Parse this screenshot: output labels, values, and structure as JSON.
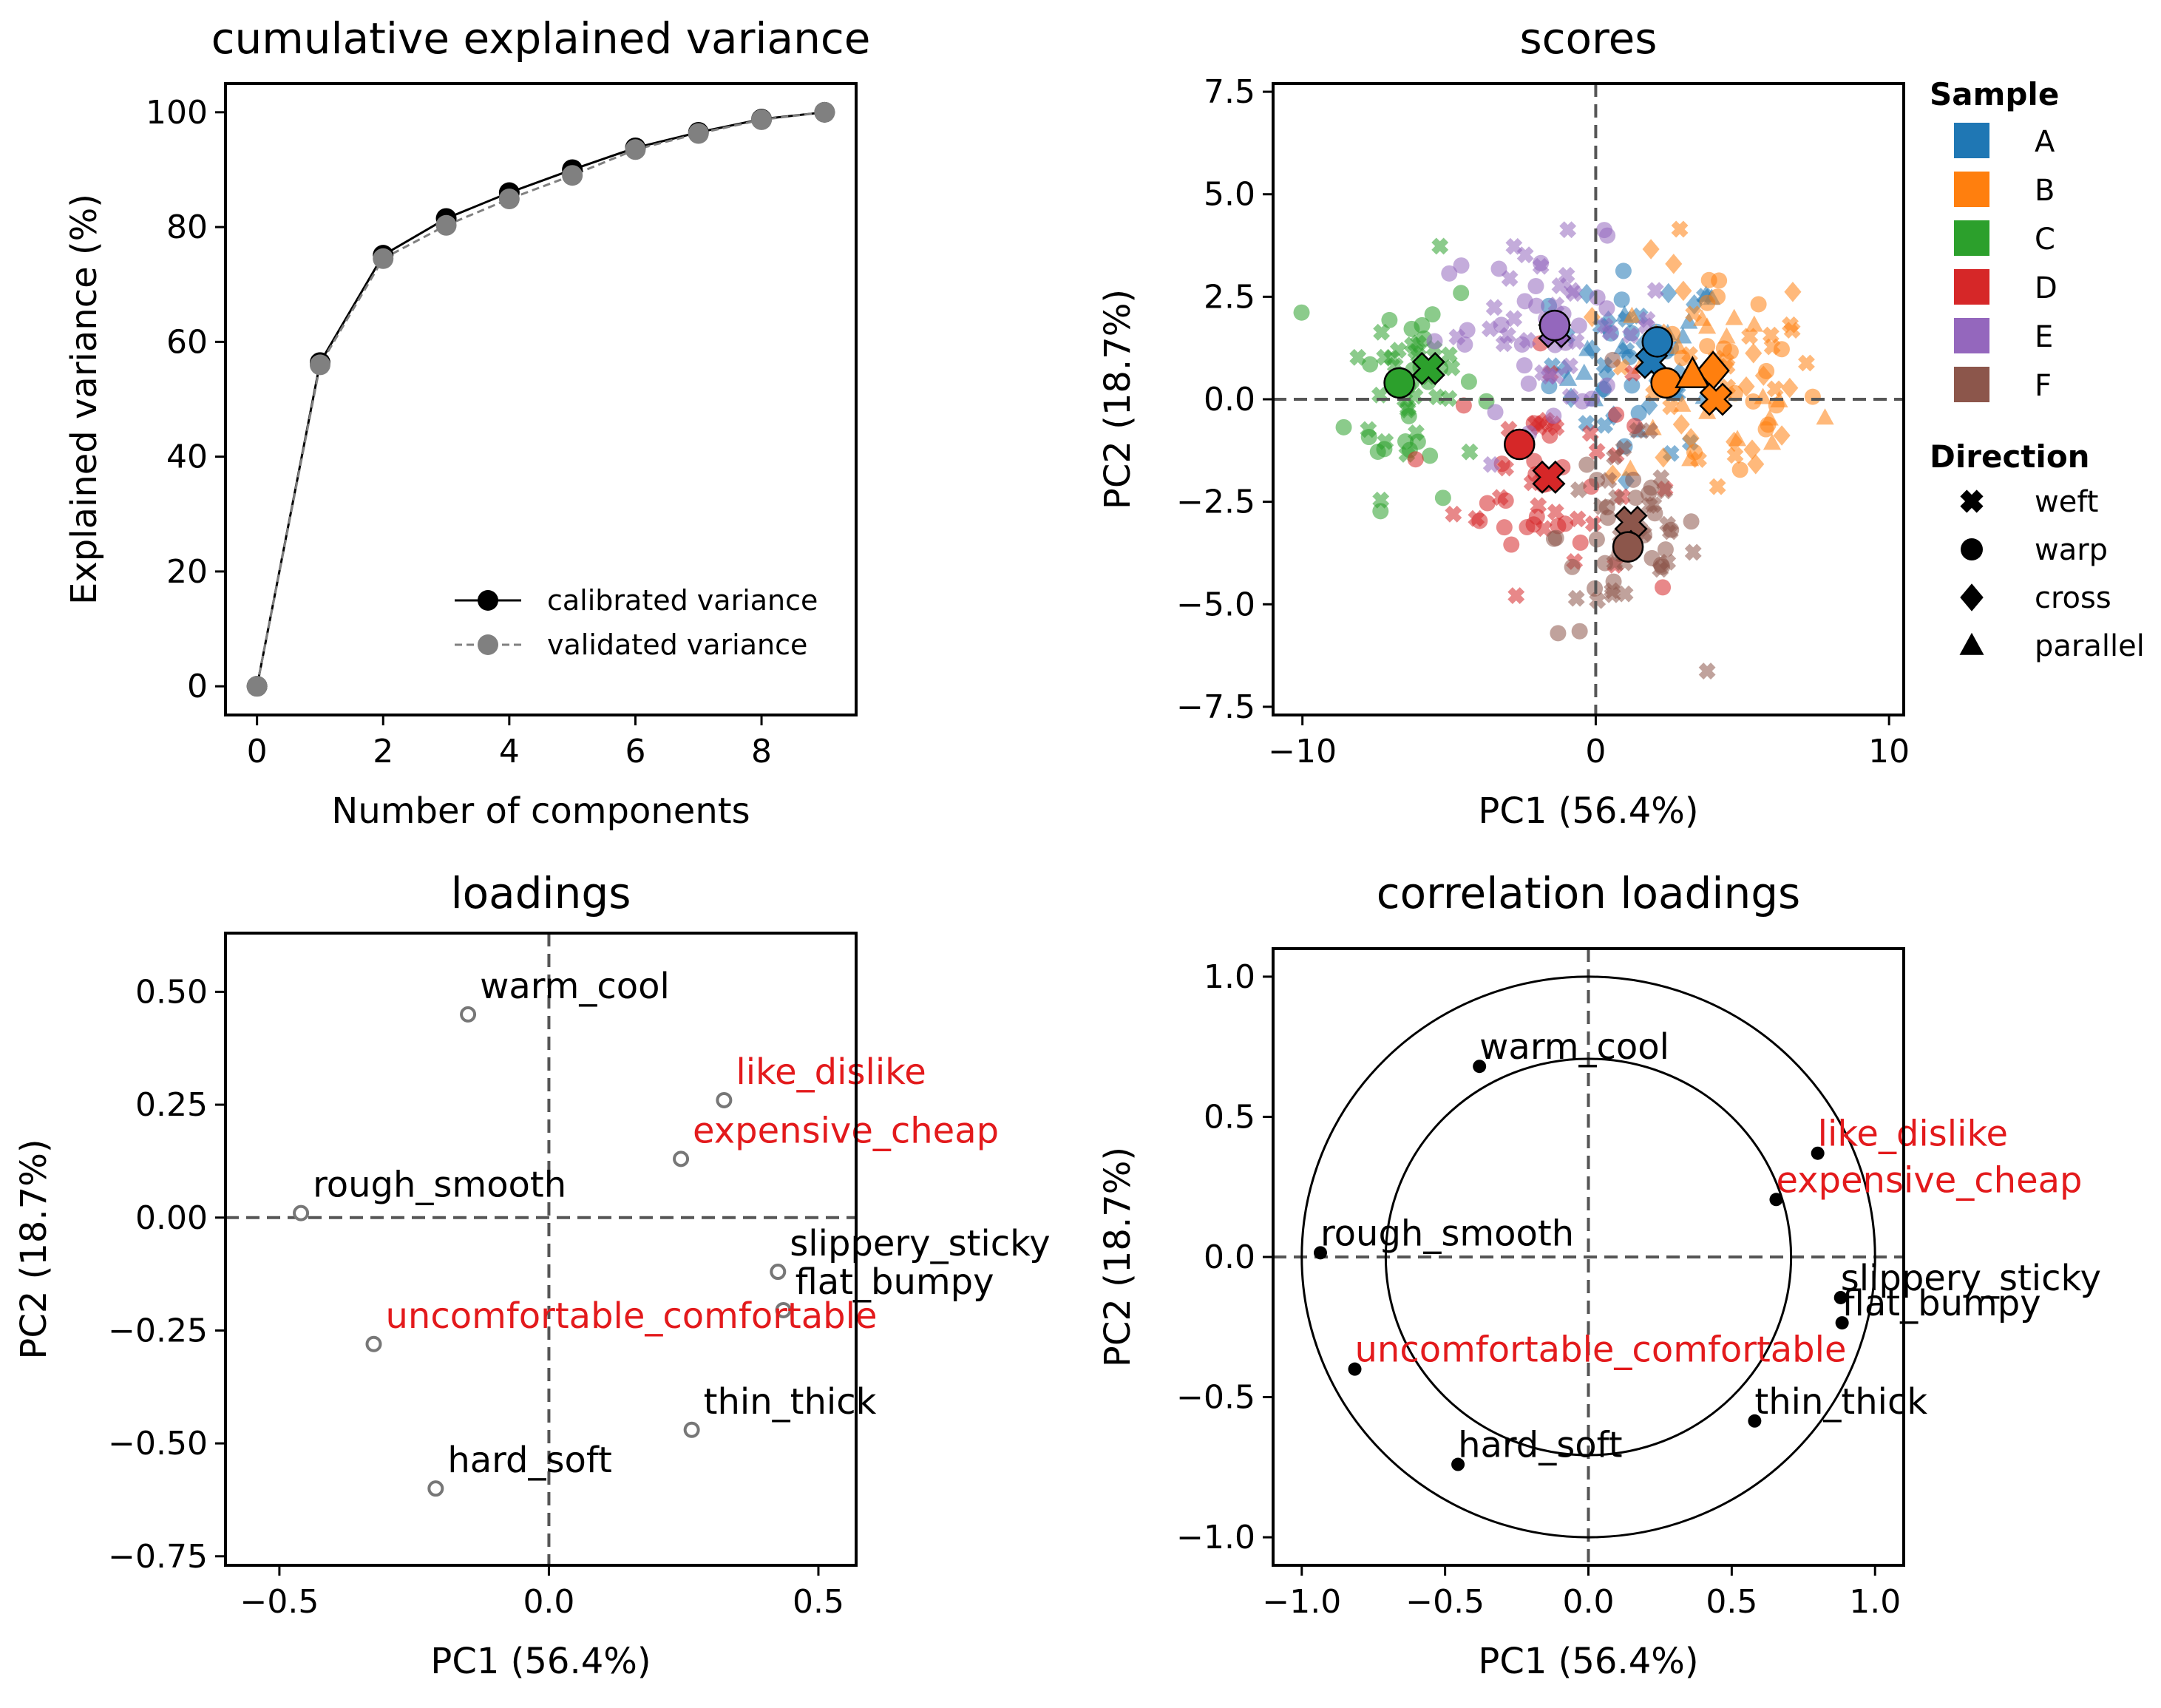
{
  "chart_data": [
    {
      "type": "line",
      "title": "cumulative explained variance",
      "xlabel": "Number of components",
      "ylabel": "Explained variance (%)",
      "xlim": [
        -0.5,
        9.5
      ],
      "ylim": [
        -5,
        105
      ],
      "xticks": [
        0,
        2,
        4,
        6,
        8
      ],
      "yticks": [
        0,
        20,
        40,
        60,
        80,
        100
      ],
      "legend_position": "lower-right",
      "series": [
        {
          "name": "calibrated variance",
          "color": "#000000",
          "x": [
            0,
            1,
            2,
            3,
            4,
            5,
            6,
            7,
            8,
            9
          ],
          "values": [
            0,
            56.4,
            75.1,
            81.5,
            86.0,
            90.0,
            93.8,
            96.5,
            98.8,
            100
          ]
        },
        {
          "name": "validated variance",
          "color": "#808080",
          "x": [
            0,
            1,
            2,
            3,
            4,
            5,
            6,
            7,
            8,
            9
          ],
          "values": [
            0,
            56.0,
            74.5,
            80.3,
            84.9,
            89.0,
            93.5,
            96.3,
            98.7,
            100
          ]
        }
      ]
    },
    {
      "type": "scatter",
      "title": "scores",
      "xlabel": "PC1 (56.4%)",
      "ylabel": "PC2 (18.7%)",
      "xlim": [
        -11,
        10.5
      ],
      "ylim": [
        -7.7,
        7.7
      ],
      "xticks": [
        -10,
        0,
        10
      ],
      "yticks": [
        -7.5,
        -5.0,
        -2.5,
        0.0,
        2.5,
        5.0,
        7.5
      ],
      "legend_position": "right-outside",
      "legend": {
        "sample_title": "Sample",
        "samples": [
          {
            "label": "A",
            "color": "#1f77b4"
          },
          {
            "label": "B",
            "color": "#ff7f0e"
          },
          {
            "label": "C",
            "color": "#2ca02c"
          },
          {
            "label": "D",
            "color": "#d62728"
          },
          {
            "label": "E",
            "color": "#9467bd"
          },
          {
            "label": "F",
            "color": "#8c564b"
          }
        ],
        "direction_title": "Direction",
        "directions": [
          {
            "label": "weft",
            "marker": "x"
          },
          {
            "label": "warp",
            "marker": "o"
          },
          {
            "label": "cross",
            "marker": "d"
          },
          {
            "label": "parallel",
            "marker": "t"
          }
        ]
      },
      "clouds": [
        {
          "sample": "A",
          "cx": 1.5,
          "cy": 0.9,
          "sx": 1.5,
          "sy": 1.1,
          "n": 60
        },
        {
          "sample": "B",
          "cx": 4.0,
          "cy": 0.4,
          "sx": 1.8,
          "sy": 1.5,
          "n": 80
        },
        {
          "sample": "C",
          "cx": -6.2,
          "cy": 0.5,
          "sx": 1.1,
          "sy": 1.4,
          "n": 55
        },
        {
          "sample": "D",
          "cx": -1.8,
          "cy": -1.8,
          "sx": 1.5,
          "sy": 1.4,
          "n": 55
        },
        {
          "sample": "E",
          "cx": -1.5,
          "cy": 1.8,
          "sx": 2.0,
          "sy": 1.0,
          "n": 60
        },
        {
          "sample": "F",
          "cx": 1.1,
          "cy": -3.3,
          "sx": 1.2,
          "sy": 1.3,
          "n": 60
        }
      ],
      "centroids": [
        {
          "sample": "A",
          "marker": "x",
          "x": 1.9,
          "y": 0.9
        },
        {
          "sample": "A",
          "marker": "o",
          "x": 2.1,
          "y": 1.4
        },
        {
          "sample": "B",
          "marker": "o",
          "x": 2.4,
          "y": 0.4
        },
        {
          "sample": "B",
          "marker": "d",
          "x": 4.0,
          "y": 0.7
        },
        {
          "sample": "B",
          "marker": "t",
          "x": 3.3,
          "y": 0.6
        },
        {
          "sample": "B",
          "marker": "x",
          "x": 4.1,
          "y": 0.0
        },
        {
          "sample": "C",
          "marker": "o",
          "x": -6.7,
          "y": 0.4
        },
        {
          "sample": "C",
          "marker": "x",
          "x": -5.7,
          "y": 0.75
        },
        {
          "sample": "D",
          "marker": "o",
          "x": -2.6,
          "y": -1.1
        },
        {
          "sample": "D",
          "marker": "x",
          "x": -1.6,
          "y": -1.9
        },
        {
          "sample": "E",
          "marker": "x",
          "x": -1.4,
          "y": 1.65
        },
        {
          "sample": "E",
          "marker": "o",
          "x": -1.4,
          "y": 1.8
        },
        {
          "sample": "F",
          "marker": "x",
          "x": 1.2,
          "y": -3.0
        },
        {
          "sample": "F",
          "marker": "o",
          "x": 1.1,
          "y": -3.6
        }
      ]
    },
    {
      "type": "scatter",
      "title": "loadings",
      "xlabel": "PC1 (56.4%)",
      "ylabel": "PC2 (18.7%)",
      "xlim": [
        -0.6,
        0.57
      ],
      "ylim": [
        -0.77,
        0.63
      ],
      "xticks": [
        -0.5,
        0.0,
        0.5
      ],
      "yticks": [
        -0.75,
        -0.5,
        -0.25,
        0.0,
        0.25,
        0.5
      ],
      "points": [
        {
          "label": "warm_cool",
          "x": -0.15,
          "y": 0.45,
          "color": "#000000"
        },
        {
          "label": "like_dislike",
          "x": 0.325,
          "y": 0.26,
          "color": "#e31a1c"
        },
        {
          "label": "expensive_cheap",
          "x": 0.245,
          "y": 0.13,
          "color": "#e31a1c"
        },
        {
          "label": "rough_smooth",
          "x": -0.46,
          "y": 0.01,
          "color": "#000000"
        },
        {
          "label": "slippery_sticky",
          "x": 0.425,
          "y": -0.12,
          "color": "#000000"
        },
        {
          "label": "flat_bumpy",
          "x": 0.435,
          "y": -0.205,
          "color": "#000000"
        },
        {
          "label": "uncomfortable_comfortable",
          "x": -0.325,
          "y": -0.28,
          "color": "#e31a1c"
        },
        {
          "label": "thin_thick",
          "x": 0.265,
          "y": -0.47,
          "color": "#000000"
        },
        {
          "label": "hard_soft",
          "x": -0.21,
          "y": -0.6,
          "color": "#000000"
        }
      ]
    },
    {
      "type": "scatter",
      "title": "correlation loadings",
      "xlabel": "PC1 (56.4%)",
      "ylabel": "PC2 (18.7%)",
      "xlim": [
        -1.1,
        1.1
      ],
      "ylim": [
        -1.1,
        1.1
      ],
      "xticks": [
        -1.0,
        -0.5,
        0.0,
        0.5,
        1.0
      ],
      "yticks": [
        -1.0,
        -0.5,
        0.0,
        0.5,
        1.0
      ],
      "circles": [
        0.707,
        1.0
      ],
      "points": [
        {
          "label": "warm_cool",
          "x": -0.38,
          "y": 0.68,
          "color": "#000000"
        },
        {
          "label": "like_dislike",
          "x": 0.8,
          "y": 0.37,
          "color": "#e31a1c"
        },
        {
          "label": "expensive_cheap",
          "x": 0.655,
          "y": 0.205,
          "color": "#e31a1c"
        },
        {
          "label": "rough_smooth",
          "x": -0.935,
          "y": 0.015,
          "color": "#000000"
        },
        {
          "label": "slippery_sticky",
          "x": 0.88,
          "y": -0.145,
          "color": "#000000"
        },
        {
          "label": "flat_bumpy",
          "x": 0.885,
          "y": -0.235,
          "color": "#000000"
        },
        {
          "label": "uncomfortable_comfortable",
          "x": -0.815,
          "y": -0.4,
          "color": "#e31a1c"
        },
        {
          "label": "thin_thick",
          "x": 0.58,
          "y": -0.585,
          "color": "#000000"
        },
        {
          "label": "hard_soft",
          "x": -0.455,
          "y": -0.74,
          "color": "#000000"
        }
      ]
    }
  ]
}
